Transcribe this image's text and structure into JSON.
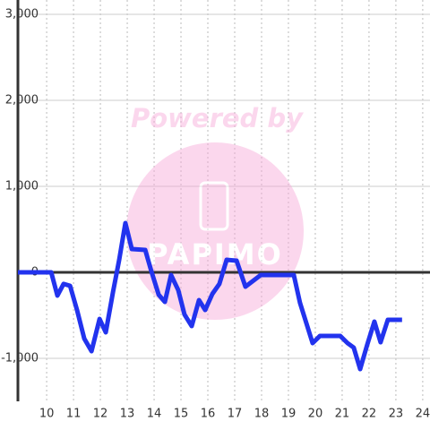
{
  "chart_data": {
    "type": "line",
    "watermark": {
      "text": "Powered by",
      "brand": "PAPIMO"
    },
    "x": [
      8.93,
      10.17,
      10.4,
      10.63,
      10.87,
      11.13,
      11.4,
      11.67,
      11.97,
      12.2,
      12.47,
      12.7,
      12.93,
      13.17,
      13.67,
      13.9,
      14.17,
      14.4,
      14.63,
      14.9,
      15.13,
      15.4,
      15.67,
      15.9,
      16.17,
      16.43,
      16.7,
      17.07,
      17.4,
      17.97,
      19.2,
      19.43,
      19.9,
      20.17,
      20.93,
      21.2,
      21.43,
      21.67,
      21.93,
      22.2,
      22.43,
      22.7,
      23.23
    ],
    "series": [
      {
        "color": "#2233ee",
        "values": [
          0,
          0,
          -271,
          -135,
          -156,
          -438,
          -771,
          -917,
          -542,
          -698,
          -229,
          146,
          573,
          271,
          260,
          10,
          -260,
          -344,
          -31,
          -208,
          -490,
          -625,
          -323,
          -438,
          -250,
          -135,
          146,
          135,
          -167,
          -31,
          -31,
          -354,
          -823,
          -740,
          -740,
          -823,
          -875,
          -1125,
          -844,
          -573,
          -813,
          -552,
          -552
        ]
      }
    ],
    "xlim": [
      8.93,
      24.27
    ],
    "xticks": [
      10,
      11,
      12,
      13,
      14,
      15,
      16,
      17,
      18,
      19,
      20,
      21,
      22,
      23,
      24
    ],
    "ylim": [
      -1500,
      3000
    ],
    "yticks": [
      {
        "value": 3000,
        "label": "3,000"
      },
      {
        "value": 2000,
        "label": "2,000"
      },
      {
        "value": 1000,
        "label": "1,000"
      },
      0,
      {
        "value": -1000,
        "label": "-1,000"
      }
    ],
    "grid": true
  }
}
